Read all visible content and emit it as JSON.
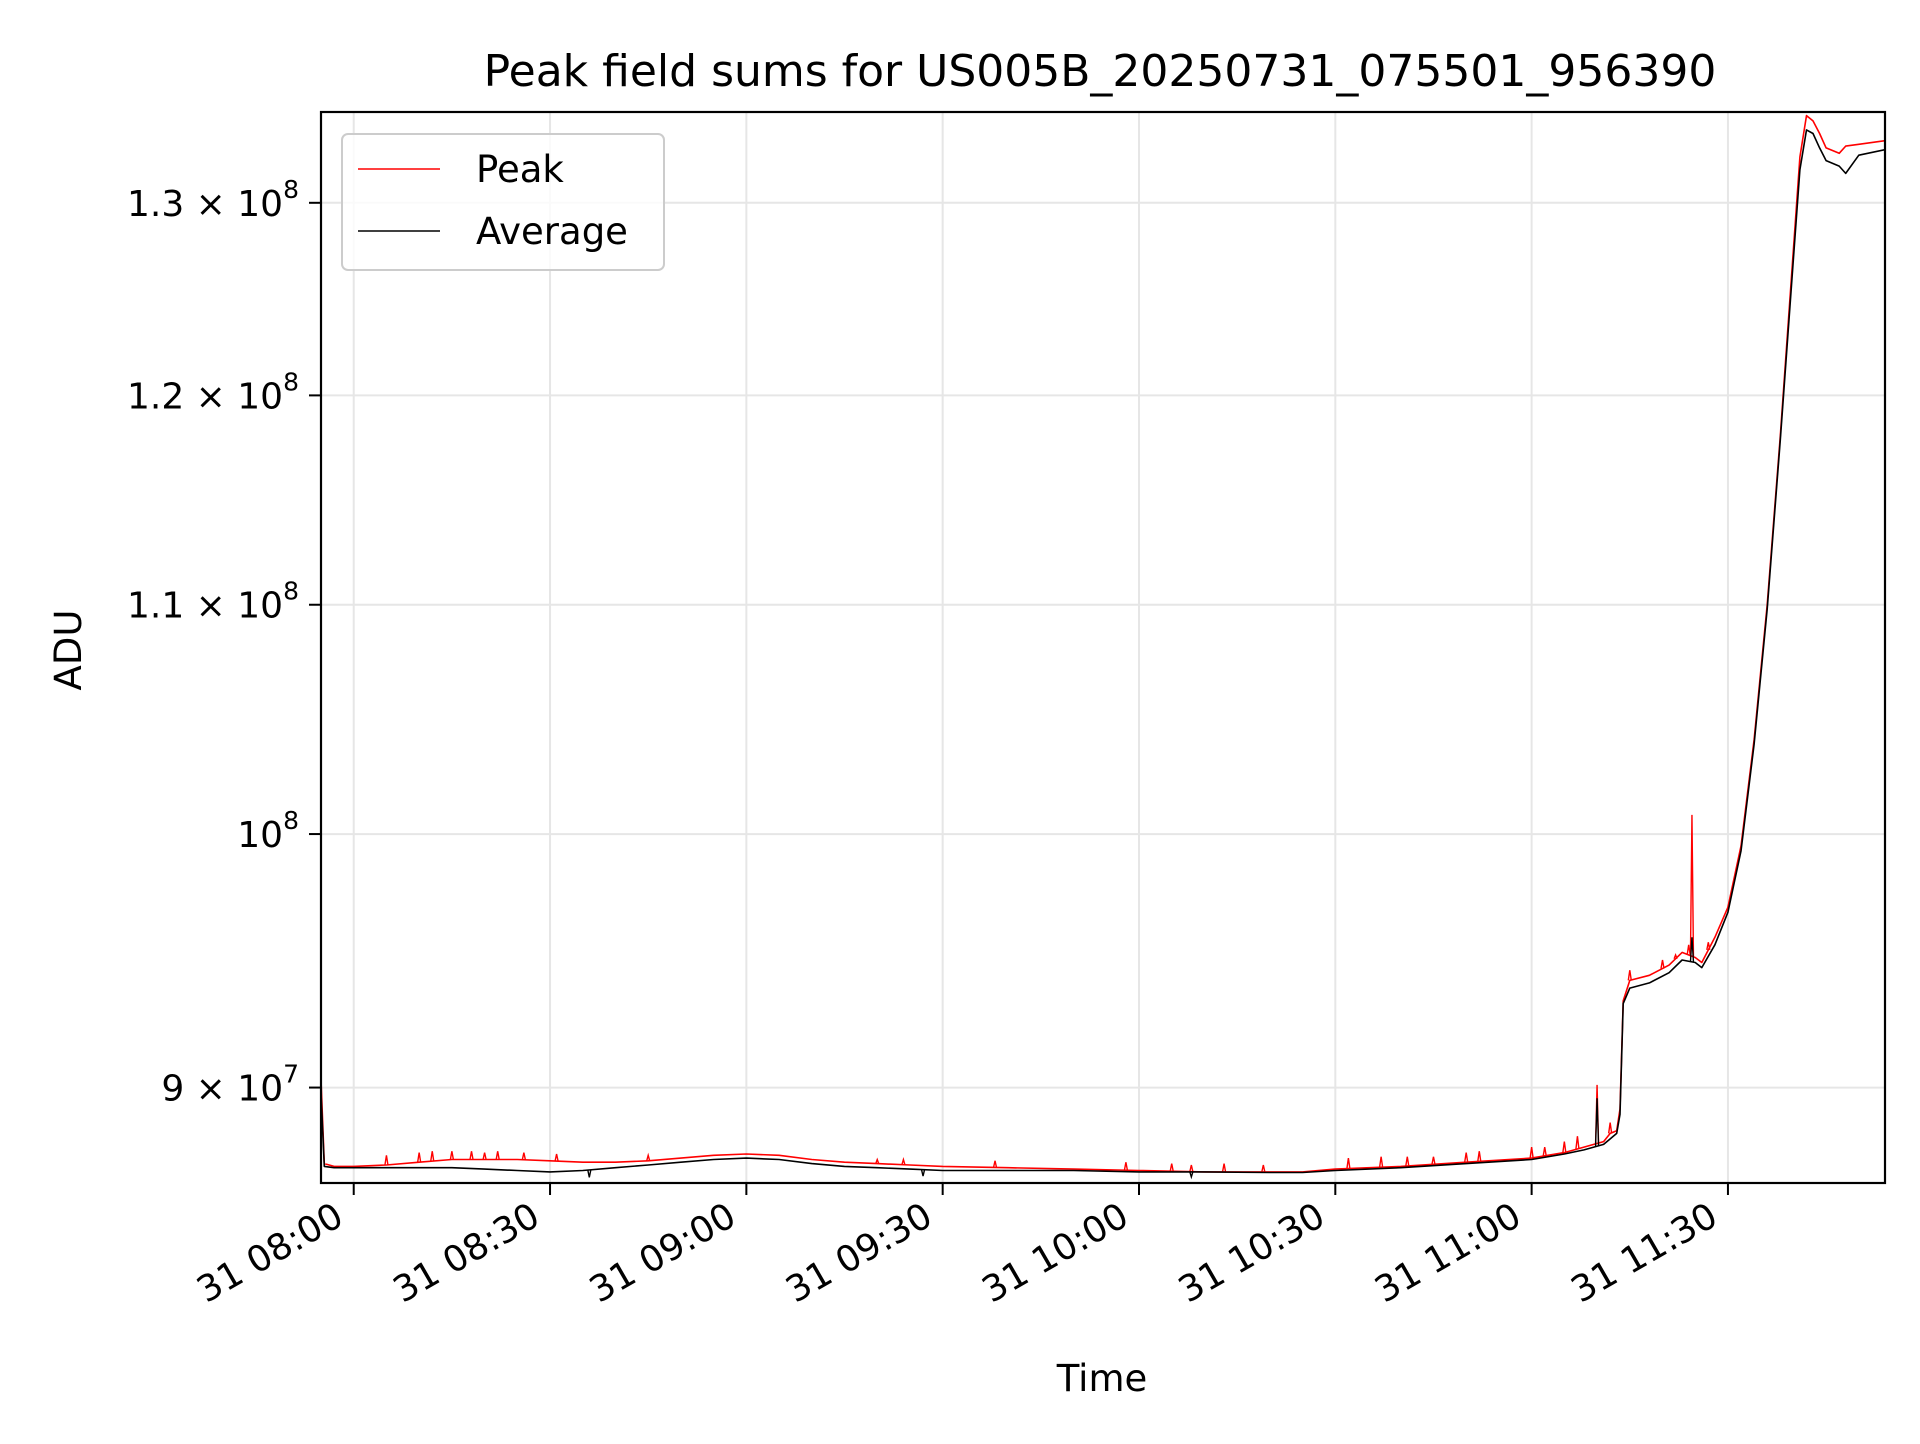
{
  "chart_data": {
    "type": "line",
    "title": "Peak field sums for US005B_20250731_075501_956390",
    "xlabel": "Time",
    "ylabel": "ADU",
    "y_scale": "log",
    "grid": true,
    "legend_position": "top-left",
    "x_range": [
      "2025-07-31 07:55",
      "2025-07-31 11:54"
    ],
    "y_range": [
      86500000,
      135000000
    ],
    "x_ticks": [
      {
        "time": "2025-07-31 08:00",
        "label": "31 08:00"
      },
      {
        "time": "2025-07-31 08:30",
        "label": "31 08:30"
      },
      {
        "time": "2025-07-31 09:00",
        "label": "31 09:00"
      },
      {
        "time": "2025-07-31 09:30",
        "label": "31 09:30"
      },
      {
        "time": "2025-07-31 10:00",
        "label": "31 10:00"
      },
      {
        "time": "2025-07-31 10:30",
        "label": "31 10:30"
      },
      {
        "time": "2025-07-31 11:00",
        "label": "31 11:00"
      },
      {
        "time": "2025-07-31 11:30",
        "label": "31 11:30"
      }
    ],
    "y_ticks": [
      {
        "value": 90000000,
        "mantissa": "9",
        "exponent": "7",
        "label": "9 × 10^7"
      },
      {
        "value": 100000000,
        "mantissa": "",
        "exponent": "8",
        "label": "10^8"
      },
      {
        "value": 110000000,
        "mantissa": "1.1",
        "exponent": "8",
        "label": "1.1 × 10^8"
      },
      {
        "value": 120000000,
        "mantissa": "1.2",
        "exponent": "8",
        "label": "1.2 × 10^8"
      },
      {
        "value": 130000000,
        "mantissa": "1.3",
        "exponent": "8",
        "label": "1.3 × 10^8"
      }
    ],
    "series": [
      {
        "name": "Peak",
        "color": "#ff0000",
        "points": [
          [
            "2025-07-31 07:55",
            90300000
          ],
          [
            "2025-07-31 07:55:30",
            87200000
          ],
          [
            "2025-07-31 07:57",
            87100000
          ],
          [
            "2025-07-31 08:00",
            87100000
          ],
          [
            "2025-07-31 08:05",
            87150000
          ],
          [
            "2025-07-31 08:10",
            87250000
          ],
          [
            "2025-07-31 08:15",
            87350000
          ],
          [
            "2025-07-31 08:20",
            87350000
          ],
          [
            "2025-07-31 08:25",
            87350000
          ],
          [
            "2025-07-31 08:30",
            87300000
          ],
          [
            "2025-07-31 08:35",
            87250000
          ],
          [
            "2025-07-31 08:40",
            87250000
          ],
          [
            "2025-07-31 08:45",
            87300000
          ],
          [
            "2025-07-31 08:50",
            87400000
          ],
          [
            "2025-07-31 08:55",
            87500000
          ],
          [
            "2025-07-31 09:00",
            87550000
          ],
          [
            "2025-07-31 09:05",
            87500000
          ],
          [
            "2025-07-31 09:10",
            87350000
          ],
          [
            "2025-07-31 09:15",
            87250000
          ],
          [
            "2025-07-31 09:20",
            87200000
          ],
          [
            "2025-07-31 09:25",
            87150000
          ],
          [
            "2025-07-31 09:30",
            87100000
          ],
          [
            "2025-07-31 09:40",
            87050000
          ],
          [
            "2025-07-31 09:50",
            87000000
          ],
          [
            "2025-07-31 10:00",
            86950000
          ],
          [
            "2025-07-31 10:10",
            86900000
          ],
          [
            "2025-07-31 10:20",
            86900000
          ],
          [
            "2025-07-31 10:25",
            86900000
          ],
          [
            "2025-07-31 10:30",
            87000000
          ],
          [
            "2025-07-31 10:40",
            87100000
          ],
          [
            "2025-07-31 10:50",
            87250000
          ],
          [
            "2025-07-31 11:00",
            87400000
          ],
          [
            "2025-07-31 11:05",
            87600000
          ],
          [
            "2025-07-31 11:08",
            87800000
          ],
          [
            "2025-07-31 11:11",
            88000000
          ],
          [
            "2025-07-31 11:12",
            88300000
          ],
          [
            "2025-07-31 11:13",
            88400000
          ],
          [
            "2025-07-31 11:13:30",
            89200000
          ],
          [
            "2025-07-31 11:14",
            93300000
          ],
          [
            "2025-07-31 11:15",
            94100000
          ],
          [
            "2025-07-31 11:18",
            94300000
          ],
          [
            "2025-07-31 11:21",
            94700000
          ],
          [
            "2025-07-31 11:23",
            95200000
          ],
          [
            "2025-07-31 11:25",
            95000000
          ],
          [
            "2025-07-31 11:26",
            94800000
          ],
          [
            "2025-07-31 11:28",
            95800000
          ],
          [
            "2025-07-31 11:30",
            97000000
          ],
          [
            "2025-07-31 11:32",
            99500000
          ],
          [
            "2025-07-31 11:34",
            104000000
          ],
          [
            "2025-07-31 11:36",
            110000000
          ],
          [
            "2025-07-31 11:38",
            118000000
          ],
          [
            "2025-07-31 11:40",
            127500000
          ],
          [
            "2025-07-31 11:41",
            132500000
          ],
          [
            "2025-07-31 11:42",
            134800000
          ],
          [
            "2025-07-31 11:43",
            134500000
          ],
          [
            "2025-07-31 11:44",
            133800000
          ],
          [
            "2025-07-31 11:45",
            133000000
          ],
          [
            "2025-07-31 11:47",
            132700000
          ],
          [
            "2025-07-31 11:48",
            133100000
          ],
          [
            "2025-07-31 11:50",
            133200000
          ],
          [
            "2025-07-31 11:54",
            133400000
          ]
        ],
        "spikes": [
          [
            "2025-07-31 08:05",
            87500000
          ],
          [
            "2025-07-31 08:10",
            87600000
          ],
          [
            "2025-07-31 08:12",
            87650000
          ],
          [
            "2025-07-31 08:15",
            87650000
          ],
          [
            "2025-07-31 08:18",
            87650000
          ],
          [
            "2025-07-31 08:20",
            87600000
          ],
          [
            "2025-07-31 08:22",
            87650000
          ],
          [
            "2025-07-31 08:26",
            87600000
          ],
          [
            "2025-07-31 08:31",
            87550000
          ],
          [
            "2025-07-31 08:45",
            87500000
          ],
          [
            "2025-07-31 09:20",
            87350000
          ],
          [
            "2025-07-31 09:24",
            87350000
          ],
          [
            "2025-07-31 09:38",
            87300000
          ],
          [
            "2025-07-31 09:58",
            87250000
          ],
          [
            "2025-07-31 10:05",
            87200000
          ],
          [
            "2025-07-31 10:08",
            87150000
          ],
          [
            "2025-07-31 10:13",
            87200000
          ],
          [
            "2025-07-31 10:19",
            87150000
          ],
          [
            "2025-07-31 10:32",
            87400000
          ],
          [
            "2025-07-31 10:37",
            87450000
          ],
          [
            "2025-07-31 10:41",
            87450000
          ],
          [
            "2025-07-31 10:45",
            87450000
          ],
          [
            "2025-07-31 10:50",
            87600000
          ],
          [
            "2025-07-31 10:52",
            87650000
          ],
          [
            "2025-07-31 11:00",
            87800000
          ],
          [
            "2025-07-31 11:02",
            87800000
          ],
          [
            "2025-07-31 11:05",
            88000000
          ],
          [
            "2025-07-31 11:07",
            88200000
          ],
          [
            "2025-07-31 11:10",
            90100000
          ],
          [
            "2025-07-31 11:12",
            88700000
          ],
          [
            "2025-07-31 11:15",
            94500000
          ],
          [
            "2025-07-31 11:20",
            94900000
          ],
          [
            "2025-07-31 11:22",
            95100000
          ],
          [
            "2025-07-31 11:24",
            95500000
          ],
          [
            "2025-07-31 11:24:30",
            100800000
          ],
          [
            "2025-07-31 11:27",
            95600000
          ]
        ]
      },
      {
        "name": "Average",
        "color": "#000000",
        "points": [
          [
            "2025-07-31 07:55",
            89800000
          ],
          [
            "2025-07-31 07:55:30",
            87100000
          ],
          [
            "2025-07-31 07:57",
            87050000
          ],
          [
            "2025-07-31 08:00",
            87050000
          ],
          [
            "2025-07-31 08:05",
            87050000
          ],
          [
            "2025-07-31 08:10",
            87050000
          ],
          [
            "2025-07-31 08:15",
            87050000
          ],
          [
            "2025-07-31 08:20",
            87000000
          ],
          [
            "2025-07-31 08:25",
            86950000
          ],
          [
            "2025-07-31 08:30",
            86900000
          ],
          [
            "2025-07-31 08:35",
            86950000
          ],
          [
            "2025-07-31 08:40",
            87050000
          ],
          [
            "2025-07-31 08:45",
            87150000
          ],
          [
            "2025-07-31 08:50",
            87250000
          ],
          [
            "2025-07-31 08:55",
            87350000
          ],
          [
            "2025-07-31 09:00",
            87400000
          ],
          [
            "2025-07-31 09:05",
            87350000
          ],
          [
            "2025-07-31 09:10",
            87200000
          ],
          [
            "2025-07-31 09:15",
            87100000
          ],
          [
            "2025-07-31 09:20",
            87050000
          ],
          [
            "2025-07-31 09:25",
            87000000
          ],
          [
            "2025-07-31 09:30",
            86950000
          ],
          [
            "2025-07-31 09:40",
            86950000
          ],
          [
            "2025-07-31 09:50",
            86950000
          ],
          [
            "2025-07-31 10:00",
            86900000
          ],
          [
            "2025-07-31 10:10",
            86900000
          ],
          [
            "2025-07-31 10:20",
            86880000
          ],
          [
            "2025-07-31 10:25",
            86880000
          ],
          [
            "2025-07-31 10:30",
            86950000
          ],
          [
            "2025-07-31 10:40",
            87050000
          ],
          [
            "2025-07-31 10:50",
            87200000
          ],
          [
            "2025-07-31 11:00",
            87350000
          ],
          [
            "2025-07-31 11:05",
            87550000
          ],
          [
            "2025-07-31 11:08",
            87700000
          ],
          [
            "2025-07-31 11:11",
            87900000
          ],
          [
            "2025-07-31 11:12",
            88100000
          ],
          [
            "2025-07-31 11:13",
            88300000
          ],
          [
            "2025-07-31 11:13:30",
            89000000
          ],
          [
            "2025-07-31 11:14",
            93200000
          ],
          [
            "2025-07-31 11:15",
            93800000
          ],
          [
            "2025-07-31 11:18",
            94000000
          ],
          [
            "2025-07-31 11:21",
            94400000
          ],
          [
            "2025-07-31 11:23",
            94900000
          ],
          [
            "2025-07-31 11:25",
            94800000
          ],
          [
            "2025-07-31 11:26",
            94600000
          ],
          [
            "2025-07-31 11:28",
            95500000
          ],
          [
            "2025-07-31 11:30",
            96800000
          ],
          [
            "2025-07-31 11:32",
            99300000
          ],
          [
            "2025-07-31 11:34",
            103800000
          ],
          [
            "2025-07-31 11:36",
            109800000
          ],
          [
            "2025-07-31 11:38",
            117800000
          ],
          [
            "2025-07-31 11:40",
            127000000
          ],
          [
            "2025-07-31 11:41",
            131800000
          ],
          [
            "2025-07-31 11:42",
            134000000
          ],
          [
            "2025-07-31 11:43",
            133800000
          ],
          [
            "2025-07-31 11:44",
            133000000
          ],
          [
            "2025-07-31 11:45",
            132300000
          ],
          [
            "2025-07-31 11:47",
            132000000
          ],
          [
            "2025-07-31 11:48",
            131600000
          ],
          [
            "2025-07-31 11:50",
            132600000
          ],
          [
            "2025-07-31 11:54",
            132900000
          ]
        ],
        "spikes": [
          [
            "2025-07-31 08:36",
            86700000
          ],
          [
            "2025-07-31 09:27",
            86750000
          ],
          [
            "2025-07-31 10:08",
            86720000
          ],
          [
            "2025-07-31 11:10",
            89600000
          ],
          [
            "2025-07-31 11:24:30",
            95800000
          ]
        ]
      }
    ]
  }
}
